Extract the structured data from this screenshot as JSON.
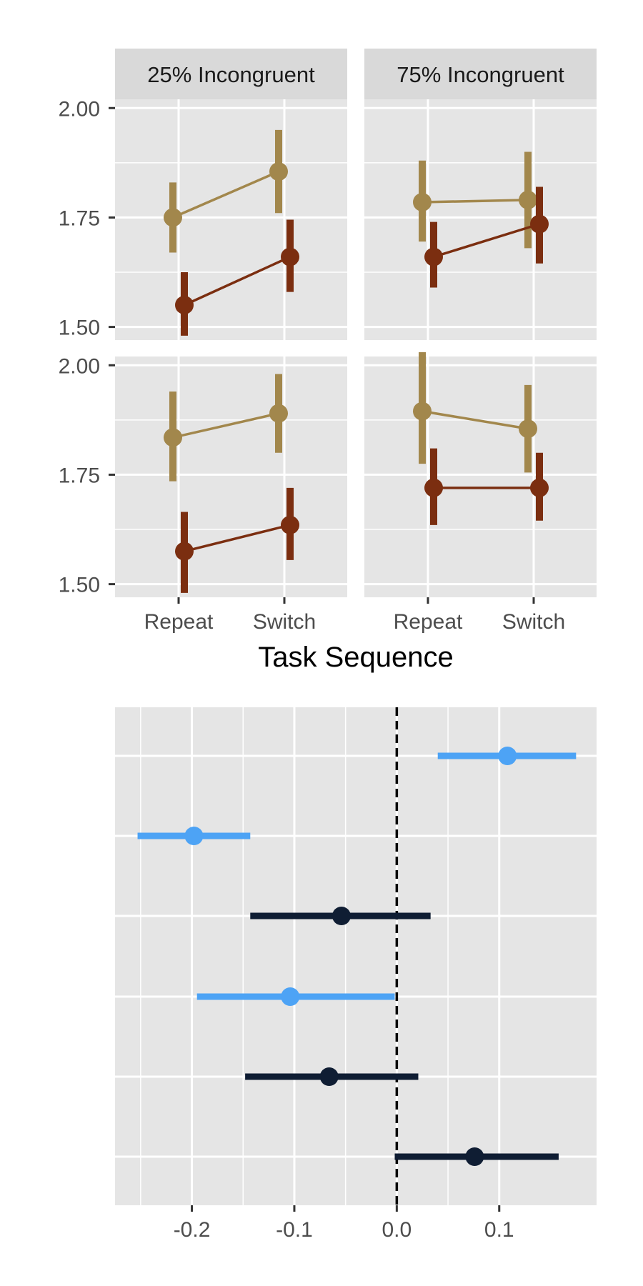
{
  "colors": {
    "panel_bg": "#e5e5e5",
    "strip_bg": "#d9d9d9",
    "grid": "#ffffff",
    "tan_series": "#a2874c",
    "brown_series": "#7b2e10",
    "blue_series": "#4da3f5",
    "navy_series": "#0f1d33"
  },
  "chart_data": [
    {
      "type": "line",
      "facets": [
        "25% Incongruent",
        "75% Incongruent"
      ],
      "categories": [
        "Repeat",
        "Switch"
      ],
      "xlabel": "Task Sequence",
      "ylim": [
        1.47,
        2.02
      ],
      "yticks": [
        "1.50",
        "1.75",
        "2.00"
      ],
      "panels": [
        {
          "row": 0,
          "facet": "25% Incongruent",
          "series": [
            {
              "color_key": "tan_series",
              "values": [
                1.75,
                1.855
              ],
              "lower": [
                1.67,
                1.76
              ],
              "upper": [
                1.83,
                1.95
              ]
            },
            {
              "color_key": "brown_series",
              "values": [
                1.55,
                1.66
              ],
              "lower": [
                1.48,
                1.58
              ],
              "upper": [
                1.625,
                1.745
              ]
            }
          ]
        },
        {
          "row": 0,
          "facet": "75% Incongruent",
          "series": [
            {
              "color_key": "tan_series",
              "values": [
                1.785,
                1.79
              ],
              "lower": [
                1.695,
                1.68
              ],
              "upper": [
                1.88,
                1.9
              ]
            },
            {
              "color_key": "brown_series",
              "values": [
                1.66,
                1.735
              ],
              "lower": [
                1.59,
                1.645
              ],
              "upper": [
                1.74,
                1.82
              ]
            }
          ]
        },
        {
          "row": 1,
          "facet": "25% Incongruent",
          "series": [
            {
              "color_key": "tan_series",
              "values": [
                1.835,
                1.89
              ],
              "lower": [
                1.735,
                1.8
              ],
              "upper": [
                1.94,
                1.98
              ]
            },
            {
              "color_key": "brown_series",
              "values": [
                1.575,
                1.635
              ],
              "lower": [
                1.48,
                1.555
              ],
              "upper": [
                1.665,
                1.72
              ]
            }
          ]
        },
        {
          "row": 1,
          "facet": "75% Incongruent",
          "series": [
            {
              "color_key": "tan_series",
              "values": [
                1.895,
                1.855
              ],
              "lower": [
                1.775,
                1.755
              ],
              "upper": [
                2.03,
                1.955
              ]
            },
            {
              "color_key": "brown_series",
              "values": [
                1.72,
                1.72
              ],
              "lower": [
                1.635,
                1.645
              ],
              "upper": [
                1.81,
                1.8
              ]
            }
          ]
        }
      ]
    },
    {
      "type": "scatter",
      "subtype": "forest",
      "xlim": [
        -0.275,
        0.195
      ],
      "xticks": [
        -0.2,
        -0.1,
        0.0,
        0.1
      ],
      "xtick_labels": [
        "-0.2",
        "-0.1",
        "0.0",
        "0.1"
      ],
      "reference_line": 0.0,
      "rows": [
        {
          "estimate": 0.108,
          "lower": 0.04,
          "upper": 0.175,
          "color_key": "blue_series"
        },
        {
          "estimate": -0.198,
          "lower": -0.253,
          "upper": -0.143,
          "color_key": "blue_series"
        },
        {
          "estimate": -0.054,
          "lower": -0.143,
          "upper": 0.033,
          "color_key": "navy_series"
        },
        {
          "estimate": -0.104,
          "lower": -0.195,
          "upper": -0.002,
          "color_key": "blue_series"
        },
        {
          "estimate": -0.066,
          "lower": -0.148,
          "upper": 0.021,
          "color_key": "navy_series"
        },
        {
          "estimate": 0.076,
          "lower": -0.002,
          "upper": 0.158,
          "color_key": "navy_series"
        }
      ]
    }
  ]
}
